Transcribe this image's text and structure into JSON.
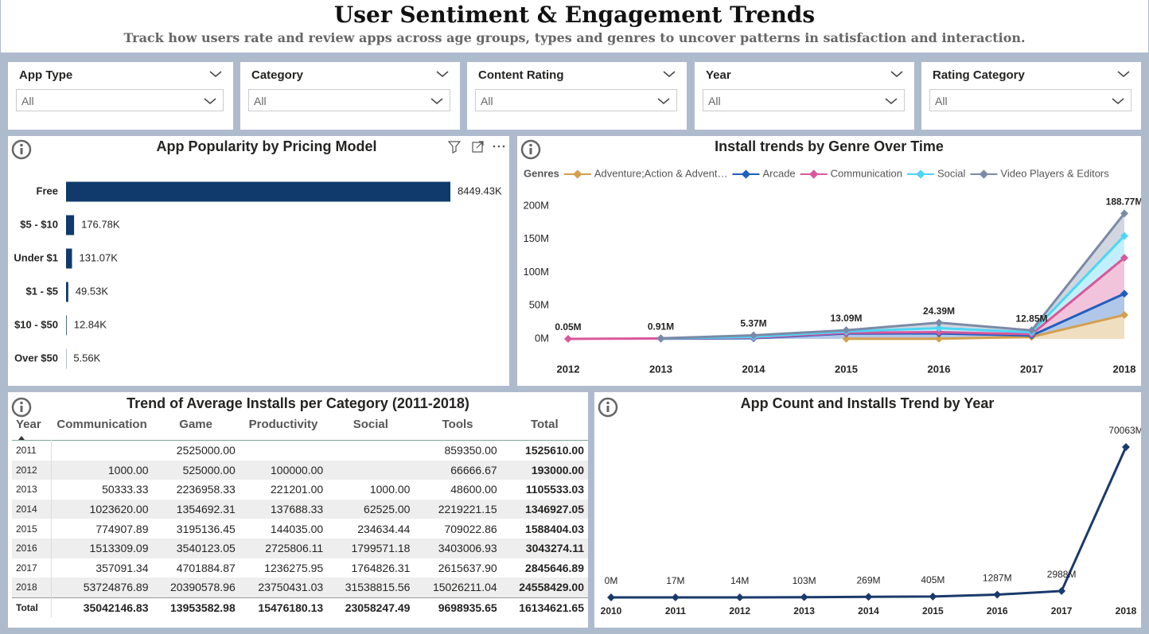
{
  "header": {
    "title": "User Sentiment & Engagement Trends",
    "subtitle": "Track how users rate and review apps across age groups, types and genres to uncover patterns in satisfaction and interaction."
  },
  "filters": [
    {
      "label": "App Type",
      "value": "All"
    },
    {
      "label": "Category",
      "value": "All"
    },
    {
      "label": "Content Rating",
      "value": "All"
    },
    {
      "label": "Year",
      "value": "All"
    },
    {
      "label": "Rating Category",
      "value": "All"
    }
  ],
  "chart_data": [
    {
      "type": "hbar",
      "title": "App Popularity by Pricing Model",
      "categories": [
        "Free",
        "$5 - $10",
        "Under $1",
        "$1 - $5",
        "$10 - $50",
        "Over $50"
      ],
      "values": [
        8449430,
        176780,
        131070,
        49530,
        12840,
        5560
      ],
      "value_labels": [
        "8449.43K",
        "176.78K",
        "131.07K",
        "49.53K",
        "12.84K",
        "5.56K"
      ],
      "color": "#0f3a6b"
    },
    {
      "type": "stacked_area",
      "title": "Install trends by Genre Over Time",
      "legend_title": "Genres",
      "x": [
        2012,
        2013,
        2014,
        2015,
        2016,
        2017,
        2018
      ],
      "series": [
        {
          "name": "Adventure;Action & Advent…",
          "color": "#d4a04e",
          "values": [
            null,
            null,
            null,
            100000,
            200000,
            3000000,
            36000000
          ]
        },
        {
          "name": "Arcade",
          "color": "#1f5fbf",
          "values": [
            null,
            300000,
            1000000,
            8000000,
            8000000,
            2000000,
            32000000
          ]
        },
        {
          "name": "Communication",
          "color": "#d9579a",
          "values": [
            50000,
            300000,
            1000000,
            1000000,
            2000000,
            2000000,
            54000000
          ]
        },
        {
          "name": "Social",
          "color": "#4dd5f5",
          "values": [
            null,
            100000,
            1000000,
            2000000,
            6000000,
            2850000,
            33000000
          ]
        },
        {
          "name": "Video Players & Editors",
          "color": "#7a8aa6",
          "values": [
            null,
            210000,
            2370000,
            1990000,
            8190000,
            3000000,
            33770000
          ]
        }
      ],
      "totals": [
        50000,
        910000,
        5370000,
        13090000,
        24390000,
        12850000,
        188770000
      ],
      "total_labels": [
        "0.05M",
        "0.91M",
        "5.37M",
        "13.09M",
        "24.39M",
        "12.85M",
        "188.77M"
      ],
      "ylim": [
        0,
        200000000
      ],
      "yticks": [
        {
          "value": 0,
          "label": "0M"
        },
        {
          "value": 50000000,
          "label": "50M"
        },
        {
          "value": 100000000,
          "label": "100M"
        },
        {
          "value": 150000000,
          "label": "150M"
        },
        {
          "value": 200000000,
          "label": "200M"
        }
      ]
    },
    {
      "type": "line",
      "title": "App Count and Installs Trend by Year",
      "x": [
        2010,
        2011,
        2012,
        2013,
        2014,
        2015,
        2016,
        2017,
        2018
      ],
      "values": [
        0,
        17,
        14,
        103,
        269,
        405,
        1287,
        2988,
        70063
      ],
      "value_labels": [
        "0M",
        "17M",
        "14M",
        "103M",
        "269M",
        "405M",
        "1287M",
        "2988M",
        "70063M"
      ],
      "color": "#1a3a6b"
    }
  ],
  "table": {
    "title": "Trend of Average Installs per Category (2011-2018)",
    "columns": [
      "Year",
      "Communication",
      "Game",
      "Productivity",
      "Social",
      "Tools",
      "Total"
    ],
    "rows": [
      [
        "2011",
        null,
        "2525000.00",
        null,
        null,
        "859350.00",
        "1525610.00"
      ],
      [
        "2012",
        "1000.00",
        "525000.00",
        "100000.00",
        null,
        "66666.67",
        "193000.00"
      ],
      [
        "2013",
        "50333.33",
        "2236958.33",
        "221201.00",
        "1000.00",
        "48600.00",
        "1105533.03"
      ],
      [
        "2014",
        "1023620.00",
        "1354692.31",
        "137688.33",
        "62525.00",
        "2219221.15",
        "1346927.05"
      ],
      [
        "2015",
        "774907.89",
        "3195136.45",
        "144035.00",
        "234634.44",
        "709022.86",
        "1588404.03"
      ],
      [
        "2016",
        "1513309.09",
        "3540123.05",
        "2725806.11",
        "1799571.18",
        "3403006.93",
        "3043274.11"
      ],
      [
        "2017",
        "357091.34",
        "4701884.87",
        "1236275.95",
        "1764826.31",
        "2615637.90",
        "2845646.89"
      ],
      [
        "2018",
        "53724876.89",
        "20390578.96",
        "23750431.03",
        "31538815.56",
        "15026211.04",
        "24558429.00"
      ]
    ],
    "total_row": [
      "Total",
      "35042146.83",
      "13953582.98",
      "15476180.13",
      "23058247.49",
      "9698935.65",
      "16134621.65"
    ]
  }
}
